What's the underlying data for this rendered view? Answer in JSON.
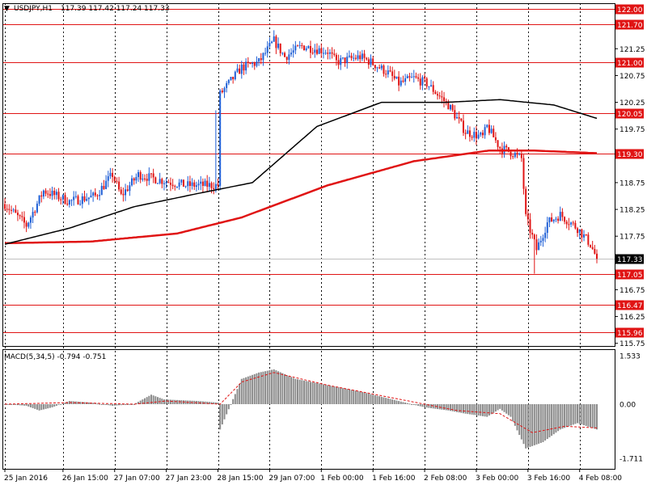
{
  "header": {
    "symbol_label": "USDJPY,H1",
    "ohlc_label": "117.39 117.42 117.24 117.33"
  },
  "colors": {
    "bull": "#1f5fd6",
    "bear": "#e01414",
    "level": "#e01414",
    "ma_slow": "#e01414",
    "ma_fast": "#000000",
    "macd_hist": "#8c8c8c",
    "macd_signal": "#e01414",
    "grid": "#000000"
  },
  "chart_data": [
    {
      "type": "candlestick",
      "title": "USDJPY,H1",
      "ylim": [
        115.7,
        122.1
      ],
      "y_ticks": [
        "121.25",
        "120.75",
        "120.25",
        "119.75",
        "118.75",
        "118.25",
        "117.75",
        "116.75",
        "116.25",
        "115.75"
      ],
      "x_tick_labels": [
        "25 Jan 2016",
        "26 Jan 15:00",
        "27 Jan 07:00",
        "27 Jan 23:00",
        "28 Jan 15:00",
        "29 Jan 07:00",
        "1 Feb 00:00",
        "1 Feb 16:00",
        "2 Feb 08:00",
        "3 Feb 00:00",
        "3 Feb 16:00",
        "4 Feb 08:00"
      ],
      "levels": [
        "122.00",
        "121.70",
        "121.00",
        "120.05",
        "119.30",
        "117.05",
        "116.47",
        "115.96"
      ],
      "current_price": "117.33",
      "x_anchor_index": [
        0,
        27,
        51,
        75,
        99,
        123,
        147,
        171,
        195,
        219,
        243,
        267
      ],
      "close_anchors": [
        [
          0,
          118.35
        ],
        [
          10,
          117.95
        ],
        [
          18,
          118.6
        ],
        [
          30,
          118.4
        ],
        [
          42,
          118.5
        ],
        [
          50,
          118.9
        ],
        [
          54,
          118.5
        ],
        [
          62,
          118.9
        ],
        [
          72,
          118.8
        ],
        [
          84,
          118.7
        ],
        [
          99,
          118.7
        ],
        [
          100,
          120.4
        ],
        [
          110,
          120.9
        ],
        [
          118,
          121.0
        ],
        [
          125,
          121.4
        ],
        [
          130,
          121.1
        ],
        [
          138,
          121.3
        ],
        [
          150,
          121.2
        ],
        [
          154,
          121.0
        ],
        [
          165,
          121.1
        ],
        [
          170,
          121.0
        ],
        [
          178,
          120.8
        ],
        [
          183,
          120.6
        ],
        [
          190,
          120.7
        ],
        [
          196,
          120.6
        ],
        [
          206,
          120.2
        ],
        [
          214,
          119.7
        ],
        [
          222,
          119.6
        ],
        [
          224,
          119.8
        ],
        [
          230,
          119.4
        ],
        [
          236,
          119.3
        ],
        [
          240,
          119.2
        ],
        [
          242,
          118.1
        ],
        [
          247,
          117.5
        ],
        [
          252,
          118.0
        ],
        [
          258,
          118.15
        ],
        [
          266,
          117.9
        ],
        [
          272,
          117.6
        ],
        [
          275,
          117.33
        ]
      ],
      "ma_fast_anchors": [
        [
          0,
          117.6
        ],
        [
          30,
          117.9
        ],
        [
          60,
          118.3
        ],
        [
          90,
          118.55
        ],
        [
          115,
          118.75
        ],
        [
          145,
          119.8
        ],
        [
          175,
          120.25
        ],
        [
          205,
          120.25
        ],
        [
          230,
          120.3
        ],
        [
          255,
          120.2
        ],
        [
          275,
          119.95
        ]
      ],
      "ma_slow_anchors": [
        [
          0,
          117.62
        ],
        [
          40,
          117.65
        ],
        [
          80,
          117.8
        ],
        [
          110,
          118.1
        ],
        [
          150,
          118.7
        ],
        [
          190,
          119.15
        ],
        [
          225,
          119.35
        ],
        [
          245,
          119.35
        ],
        [
          275,
          119.3
        ]
      ],
      "spikes": [
        [
          98,
          120.1
        ],
        [
          226,
          119.5
        ]
      ],
      "dips": [
        [
          246,
          117.05
        ]
      ]
    },
    {
      "type": "macd",
      "title": "MACD(5,34,5) -0.794 -0.751",
      "ylim": [
        -1.711,
        1.533
      ],
      "y_ticks": [
        "1.533",
        "0.00",
        "-1.711"
      ],
      "hist_anchors": [
        [
          0,
          0.0
        ],
        [
          10,
          -0.05
        ],
        [
          16,
          -0.2
        ],
        [
          22,
          -0.1
        ],
        [
          30,
          0.1
        ],
        [
          40,
          0.05
        ],
        [
          50,
          -0.05
        ],
        [
          60,
          0.0
        ],
        [
          68,
          0.3
        ],
        [
          74,
          0.15
        ],
        [
          90,
          0.1
        ],
        [
          99,
          0.05
        ],
        [
          100,
          -0.8
        ],
        [
          110,
          0.8
        ],
        [
          118,
          1.0
        ],
        [
          125,
          1.1
        ],
        [
          135,
          0.8
        ],
        [
          150,
          0.6
        ],
        [
          165,
          0.4
        ],
        [
          180,
          0.15
        ],
        [
          195,
          -0.1
        ],
        [
          206,
          -0.2
        ],
        [
          214,
          -0.3
        ],
        [
          224,
          -0.4
        ],
        [
          230,
          -0.15
        ],
        [
          235,
          -0.4
        ],
        [
          242,
          -1.4
        ],
        [
          250,
          -1.2
        ],
        [
          258,
          -0.8
        ],
        [
          266,
          -0.6
        ],
        [
          275,
          -0.8
        ]
      ],
      "signal_anchors": [
        [
          0,
          0.0
        ],
        [
          30,
          0.05
        ],
        [
          60,
          0.0
        ],
        [
          75,
          0.1
        ],
        [
          100,
          0.0
        ],
        [
          110,
          0.7
        ],
        [
          125,
          1.0
        ],
        [
          150,
          0.6
        ],
        [
          180,
          0.2
        ],
        [
          210,
          -0.2
        ],
        [
          230,
          -0.3
        ],
        [
          245,
          -0.9
        ],
        [
          260,
          -0.7
        ],
        [
          275,
          -0.75
        ]
      ]
    }
  ]
}
